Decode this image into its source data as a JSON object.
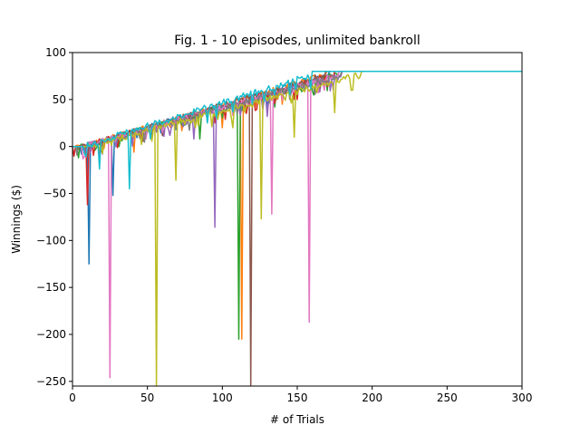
{
  "chart_data": {
    "type": "line",
    "title": "Fig. 1 - 10 episodes, unlimited bankroll",
    "xlabel": "# of Trials",
    "ylabel": "Winnings ($)",
    "xlim": [
      0,
      300
    ],
    "ylim": [
      -255,
      100
    ],
    "xticks": [
      0,
      50,
      100,
      150,
      200,
      250,
      300
    ],
    "yticks": [
      100,
      50,
      0,
      -50,
      -100,
      -150,
      -200,
      -250
    ],
    "xtick_labels": [
      "0",
      "50",
      "100",
      "150",
      "200",
      "250",
      "300"
    ],
    "ytick_labels": [
      "100",
      "50",
      "0",
      "−50",
      "−100",
      "−150",
      "−200",
      "−250"
    ],
    "grid": false,
    "legend": "none",
    "target_winnings": 80,
    "series": [
      {
        "color": "#1f77b4",
        "reach_trial": 172,
        "dips": [
          [
            11,
            -125
          ],
          [
            27,
            -52
          ],
          [
            52,
            12
          ],
          [
            90,
            30
          ],
          [
            130,
            40
          ]
        ]
      },
      {
        "color": "#ff7f0e",
        "reach_trial": 170,
        "dips": [
          [
            9,
            -8
          ],
          [
            41,
            -6
          ],
          [
            100,
            20
          ],
          [
            113,
            -205
          ],
          [
            140,
            45
          ]
        ]
      },
      {
        "color": "#2ca02c",
        "reach_trial": 178,
        "dips": [
          [
            31,
            0
          ],
          [
            85,
            8
          ],
          [
            111,
            -205
          ],
          [
            135,
            42
          ],
          [
            160,
            60
          ]
        ]
      },
      {
        "color": "#d62728",
        "reach_trial": 175,
        "dips": [
          [
            8,
            -8
          ],
          [
            10,
            -62
          ],
          [
            60,
            18
          ],
          [
            95,
            25
          ],
          [
            150,
            50
          ]
        ]
      },
      {
        "color": "#9467bd",
        "reach_trial": 180,
        "dips": [
          [
            20,
            -8
          ],
          [
            81,
            8
          ],
          [
            95,
            -86
          ],
          [
            130,
            32
          ],
          [
            165,
            58
          ]
        ]
      },
      {
        "color": "#8c564b",
        "reach_trial": 170,
        "dips": [
          [
            45,
            10
          ],
          [
            80,
            30
          ],
          [
            119,
            -255
          ],
          [
            150,
            55
          ],
          [
            165,
            62
          ]
        ]
      },
      {
        "color": "#e377c2",
        "reach_trial": 178,
        "dips": [
          [
            25,
            -246
          ],
          [
            60,
            15
          ],
          [
            133,
            -72
          ],
          [
            158,
            -187
          ],
          [
            168,
            60
          ]
        ]
      },
      {
        "color": "#7f7f7f",
        "reach_trial": 180,
        "dips": [
          [
            30,
            10
          ],
          [
            70,
            28
          ],
          [
            110,
            35
          ],
          [
            145,
            50
          ],
          [
            170,
            65
          ]
        ]
      },
      {
        "color": "#bcbd22",
        "reach_trial": 193,
        "dips": [
          [
            56,
            -255
          ],
          [
            69,
            -36
          ],
          [
            107,
            20
          ],
          [
            126,
            -77
          ],
          [
            148,
            10
          ],
          [
            175,
            36
          ],
          [
            187,
            60
          ]
        ]
      },
      {
        "color": "#17becf",
        "reach_trial": 160,
        "dips": [
          [
            18,
            -24
          ],
          [
            38,
            -45
          ],
          [
            90,
            25
          ],
          [
            120,
            45
          ],
          [
            145,
            55
          ]
        ]
      }
    ]
  }
}
